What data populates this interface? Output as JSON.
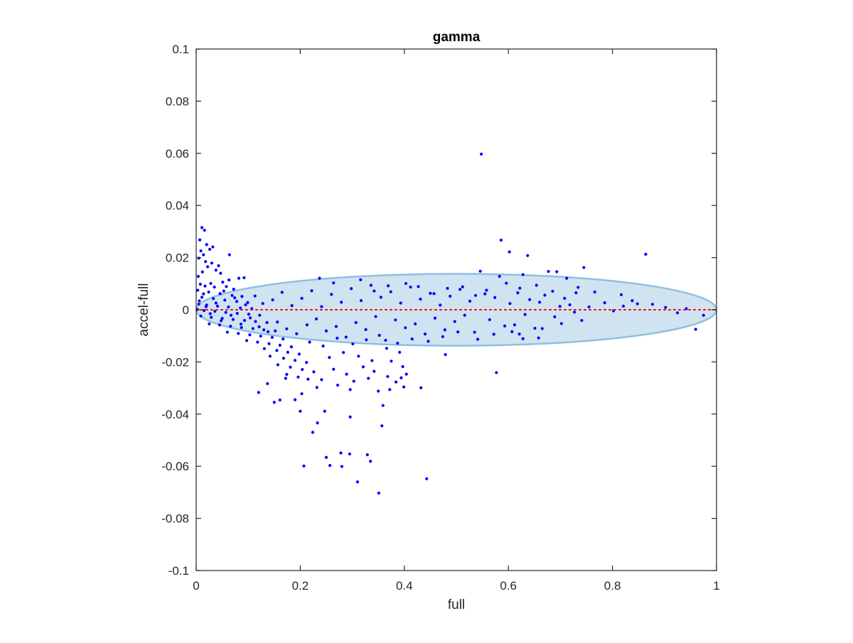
{
  "chart_data": {
    "type": "scatter",
    "title": "gamma",
    "xlabel": "full",
    "ylabel": "accel-full",
    "xlim": [
      0,
      1
    ],
    "ylim": [
      -0.1,
      0.1
    ],
    "x_ticks": [
      0,
      0.2,
      0.4,
      0.6,
      0.8,
      1
    ],
    "x_tick_labels": [
      "0",
      "0.2",
      "0.4",
      "0.6",
      "0.8",
      "1"
    ],
    "y_ticks": [
      -0.1,
      -0.08,
      -0.06,
      -0.04,
      -0.02,
      0,
      0.02,
      0.04,
      0.06,
      0.08,
      0.1
    ],
    "y_tick_labels": [
      "-0.1",
      "-0.08",
      "-0.06",
      "-0.04",
      "-0.02",
      "0",
      "0.02",
      "0.04",
      "0.06",
      "0.08",
      "0.1"
    ],
    "grid": false,
    "colors": {
      "points": "#0000ff",
      "zero_line": "#ff0000",
      "ellipse_fill": "#cfe3f1",
      "ellipse_edge": "#8fbfe0",
      "axes": "#262626"
    },
    "reference_line": {
      "y": 0,
      "style": "dotted"
    },
    "ellipse": {
      "cx": 0.5,
      "cy": 0,
      "rx": 0.5,
      "ry": 0.0138
    },
    "series": [
      {
        "points": [
          [
            0.548,
            0.0597
          ],
          [
            0.864,
            0.0213
          ],
          [
            0.586,
            0.0267
          ],
          [
            0.602,
            0.0222
          ],
          [
            0.637,
            0.0208
          ],
          [
            0.745,
            0.0162
          ],
          [
            0.546,
            0.0148
          ],
          [
            0.677,
            0.0147
          ],
          [
            0.693,
            0.0146
          ],
          [
            0.583,
            0.0128
          ],
          [
            0.628,
            0.0135
          ],
          [
            0.73,
            0.0065
          ],
          [
            0.766,
            0.0068
          ],
          [
            0.817,
            0.0058
          ],
          [
            0.848,
            0.0023
          ],
          [
            0.877,
            0.0021
          ],
          [
            0.821,
            0.0014
          ],
          [
            0.96,
            -0.0075
          ],
          [
            0.577,
            -0.0241
          ],
          [
            0.479,
            -0.0172
          ],
          [
            0.658,
            -0.0108
          ],
          [
            0.621,
            -0.0093
          ],
          [
            0.612,
            -0.0058
          ],
          [
            0.443,
            -0.0648
          ],
          [
            0.351,
            -0.0703
          ],
          [
            0.31,
            -0.066
          ],
          [
            0.335,
            -0.0581
          ],
          [
            0.329,
            -0.0556
          ],
          [
            0.295,
            -0.0553
          ],
          [
            0.278,
            -0.0549
          ],
          [
            0.28,
            -0.0601
          ],
          [
            0.257,
            -0.0597
          ],
          [
            0.25,
            -0.0566
          ],
          [
            0.207,
            -0.0599
          ],
          [
            0.224,
            -0.047
          ],
          [
            0.233,
            -0.0434
          ],
          [
            0.247,
            -0.0389
          ],
          [
            0.296,
            -0.0411
          ],
          [
            0.357,
            -0.0445
          ],
          [
            0.359,
            -0.0367
          ],
          [
            0.35,
            -0.0312
          ],
          [
            0.432,
            -0.0299
          ],
          [
            0.399,
            -0.0296
          ],
          [
            0.372,
            -0.0306
          ],
          [
            0.296,
            -0.0306
          ],
          [
            0.375,
            -0.0197
          ],
          [
            0.397,
            -0.0218
          ],
          [
            0.2,
            -0.0389
          ],
          [
            0.19,
            -0.0345
          ],
          [
            0.161,
            -0.0346
          ],
          [
            0.15,
            -0.0355
          ],
          [
            0.12,
            -0.0317
          ],
          [
            0.137,
            -0.0283
          ],
          [
            0.172,
            -0.0263
          ],
          [
            0.203,
            -0.0322
          ],
          [
            0.232,
            -0.0298
          ],
          [
            0.215,
            -0.0266
          ],
          [
            0.011,
            0.0315
          ],
          [
            0.016,
            0.0305
          ],
          [
            0.007,
            0.0268
          ],
          [
            0.02,
            0.025
          ],
          [
            0.032,
            0.0241
          ],
          [
            0.026,
            0.0232
          ],
          [
            0.064,
            0.0211
          ],
          [
            0.009,
            0.0226
          ],
          [
            0.014,
            0.0211
          ],
          [
            0.005,
            0.0198
          ],
          [
            0.018,
            0.0185
          ],
          [
            0.03,
            0.0179
          ],
          [
            0.022,
            0.0165
          ],
          [
            0.043,
            0.0169
          ],
          [
            0.038,
            0.0152
          ],
          [
            0.012,
            0.0145
          ],
          [
            0.047,
            0.014
          ],
          [
            0.004,
            0.0128
          ],
          [
            0.082,
            0.0121
          ],
          [
            0.092,
            0.0123
          ],
          [
            0.063,
            0.0114
          ],
          [
            0.051,
            0.0106
          ],
          [
            0.028,
            0.0101
          ],
          [
            0.008,
            0.0098
          ],
          [
            0.017,
            0.0091
          ],
          [
            0.035,
            0.0087
          ],
          [
            0.058,
            0.0089
          ],
          [
            0.072,
            0.0079
          ],
          [
            0.003,
            0.0075
          ],
          [
            0.024,
            0.0068
          ],
          [
            0.046,
            0.0062
          ],
          [
            0.069,
            0.0055
          ],
          [
            0.088,
            0.0051
          ],
          [
            0.011,
            0.0048
          ],
          [
            0.033,
            0.0043
          ],
          [
            0.055,
            0.0037
          ],
          [
            0.078,
            0.0032
          ],
          [
            0.099,
            0.0028
          ],
          [
            0.005,
            0.0022
          ],
          [
            0.02,
            0.0018
          ],
          [
            0.041,
            0.0014
          ],
          [
            0.062,
            0.0011
          ],
          [
            0.085,
            0.0007
          ],
          [
            0.107,
            0.0004
          ],
          [
            0.002,
            0.0001
          ],
          [
            0.015,
            -0.0003
          ],
          [
            0.036,
            -0.0006
          ],
          [
            0.057,
            -0.001
          ],
          [
            0.079,
            -0.0014
          ],
          [
            0.101,
            -0.0017
          ],
          [
            0.122,
            -0.0021
          ],
          [
            0.009,
            -0.0024
          ],
          [
            0.029,
            -0.0029
          ],
          [
            0.05,
            -0.0033
          ],
          [
            0.071,
            -0.0037
          ],
          [
            0.093,
            -0.0041
          ],
          [
            0.114,
            -0.0045
          ],
          [
            0.136,
            -0.0049
          ],
          [
            0.025,
            -0.0054
          ],
          [
            0.045,
            -0.0058
          ],
          [
            0.066,
            -0.0063
          ],
          [
            0.087,
            -0.0068
          ],
          [
            0.109,
            -0.0072
          ],
          [
            0.13,
            -0.0077
          ],
          [
            0.152,
            -0.0081
          ],
          [
            0.06,
            -0.0086
          ],
          [
            0.081,
            -0.0091
          ],
          [
            0.103,
            -0.0096
          ],
          [
            0.124,
            -0.0101
          ],
          [
            0.146,
            -0.0106
          ],
          [
            0.167,
            -0.0112
          ],
          [
            0.097,
            -0.0118
          ],
          [
            0.118,
            -0.0124
          ],
          [
            0.14,
            -0.013
          ],
          [
            0.161,
            -0.0136
          ],
          [
            0.183,
            -0.0142
          ],
          [
            0.131,
            -0.0149
          ],
          [
            0.155,
            -0.0156
          ],
          [
            0.176,
            -0.0163
          ],
          [
            0.198,
            -0.017
          ],
          [
            0.142,
            -0.0178
          ],
          [
            0.168,
            -0.0186
          ],
          [
            0.19,
            -0.0194
          ],
          [
            0.212,
            -0.0202
          ],
          [
            0.157,
            -0.0211
          ],
          [
            0.181,
            -0.022
          ],
          [
            0.204,
            -0.0229
          ],
          [
            0.226,
            -0.0238
          ],
          [
            0.174,
            -0.0248
          ],
          [
            0.196,
            -0.0258
          ],
          [
            0.014,
            0.0061
          ],
          [
            0.006,
            0.0034
          ],
          [
            0.019,
            0.0012
          ],
          [
            0.027,
            -0.0015
          ],
          [
            0.038,
            0.0026
          ],
          [
            0.048,
            -0.0042
          ],
          [
            0.053,
            0.0072
          ],
          [
            0.067,
            -0.0021
          ],
          [
            0.074,
            0.0046
          ],
          [
            0.086,
            -0.0055
          ],
          [
            0.095,
            0.0019
          ],
          [
            0.104,
            -0.0031
          ],
          [
            0.113,
            0.0053
          ],
          [
            0.121,
            -0.0065
          ],
          [
            0.128,
            0.0024
          ],
          [
            0.138,
            -0.0084
          ],
          [
            0.147,
            0.0038
          ],
          [
            0.156,
            -0.0047
          ],
          [
            0.165,
            0.0067
          ],
          [
            0.174,
            -0.0073
          ],
          [
            0.184,
            0.0016
          ],
          [
            0.193,
            -0.0092
          ],
          [
            0.203,
            0.0044
          ],
          [
            0.213,
            -0.0058
          ],
          [
            0.222,
            0.0073
          ],
          [
            0.231,
            -0.0035
          ],
          [
            0.241,
            0.0012
          ],
          [
            0.25,
            -0.0081
          ],
          [
            0.26,
            0.0059
          ],
          [
            0.269,
            -0.0064
          ],
          [
            0.279,
            0.0029
          ],
          [
            0.288,
            -0.0105
          ],
          [
            0.298,
            0.0081
          ],
          [
            0.307,
            -0.0049
          ],
          [
            0.317,
            0.0035
          ],
          [
            0.326,
            -0.0076
          ],
          [
            0.336,
            0.0094
          ],
          [
            0.345,
            -0.0026
          ],
          [
            0.355,
            0.0048
          ],
          [
            0.364,
            -0.0117
          ],
          [
            0.374,
            0.0069
          ],
          [
            0.383,
            -0.0039
          ],
          [
            0.393,
            0.0026
          ],
          [
            0.402,
            -0.0069
          ],
          [
            0.412,
            0.0087
          ],
          [
            0.421,
            -0.0054
          ],
          [
            0.431,
            0.0041
          ],
          [
            0.44,
            -0.0093
          ],
          [
            0.45,
            0.0063
          ],
          [
            0.459,
            -0.0032
          ],
          [
            0.469,
            0.0018
          ],
          [
            0.478,
            -0.0077
          ],
          [
            0.488,
            0.0052
          ],
          [
            0.497,
            -0.0045
          ],
          [
            0.507,
            0.0078
          ],
          [
            0.516,
            -0.0021
          ],
          [
            0.526,
            0.0033
          ],
          [
            0.535,
            -0.0086
          ],
          [
            0.555,
            0.0061
          ],
          [
            0.564,
            -0.0038
          ],
          [
            0.574,
            0.0047
          ],
          [
            0.593,
            -0.0062
          ],
          [
            0.603,
            0.0024
          ],
          [
            0.622,
            0.0083
          ],
          [
            0.632,
            -0.0018
          ],
          [
            0.641,
            0.0039
          ],
          [
            0.651,
            -0.0071
          ],
          [
            0.66,
            0.0029
          ],
          [
            0.67,
            0.0056
          ],
          [
            0.689,
            -0.0027
          ],
          [
            0.699,
            0.0013
          ],
          [
            0.708,
            0.0044
          ],
          [
            0.718,
            0.0019
          ],
          [
            0.727,
            -0.0009
          ],
          [
            0.755,
            0.0011
          ],
          [
            0.785,
            0.0027
          ],
          [
            0.802,
            -0.0004
          ],
          [
            0.838,
            0.0035
          ],
          [
            0.902,
            0.0009
          ],
          [
            0.925,
            -0.0012
          ],
          [
            0.942,
            0.0004
          ],
          [
            0.975,
            -0.0021
          ],
          [
            0.237,
            0.0121
          ],
          [
            0.264,
            0.0103
          ],
          [
            0.316,
            0.0115
          ],
          [
            0.342,
            0.0072
          ],
          [
            0.369,
            0.0092
          ],
          [
            0.403,
            0.0101
          ],
          [
            0.427,
            0.0089
          ],
          [
            0.457,
            0.0062
          ],
          [
            0.483,
            0.0082
          ],
          [
            0.512,
            0.0088
          ],
          [
            0.537,
            0.0055
          ],
          [
            0.558,
            0.0075
          ],
          [
            0.596,
            0.0102
          ],
          [
            0.618,
            0.0065
          ],
          [
            0.654,
            0.0094
          ],
          [
            0.685,
            0.0071
          ],
          [
            0.712,
            0.0121
          ],
          [
            0.734,
            0.0086
          ],
          [
            0.218,
            -0.0124
          ],
          [
            0.244,
            -0.0139
          ],
          [
            0.271,
            -0.0109
          ],
          [
            0.301,
            -0.0131
          ],
          [
            0.327,
            -0.0115
          ],
          [
            0.352,
            -0.0098
          ],
          [
            0.387,
            -0.0128
          ],
          [
            0.415,
            -0.0112
          ],
          [
            0.446,
            -0.0121
          ],
          [
            0.474,
            -0.0103
          ],
          [
            0.503,
            -0.0085
          ],
          [
            0.541,
            -0.0113
          ],
          [
            0.572,
            -0.0094
          ],
          [
            0.607,
            -0.0084
          ],
          [
            0.628,
            -0.0111
          ],
          [
            0.665,
            -0.0072
          ],
          [
            0.702,
            -0.0053
          ],
          [
            0.741,
            -0.0041
          ],
          [
            0.256,
            -0.0183
          ],
          [
            0.283,
            -0.0164
          ],
          [
            0.312,
            -0.0178
          ],
          [
            0.338,
            -0.0195
          ],
          [
            0.366,
            -0.0148
          ],
          [
            0.391,
            -0.0163
          ],
          [
            0.264,
            -0.0228
          ],
          [
            0.289,
            -0.0247
          ],
          [
            0.321,
            -0.0219
          ],
          [
            0.342,
            -0.0236
          ],
          [
            0.368,
            -0.0256
          ],
          [
            0.404,
            -0.0247
          ],
          [
            0.241,
            -0.0268
          ],
          [
            0.272,
            -0.0289
          ],
          [
            0.303,
            -0.0274
          ],
          [
            0.331,
            -0.0263
          ],
          [
            0.394,
            -0.0261
          ],
          [
            0.384,
            -0.0277
          ]
        ]
      }
    ]
  }
}
